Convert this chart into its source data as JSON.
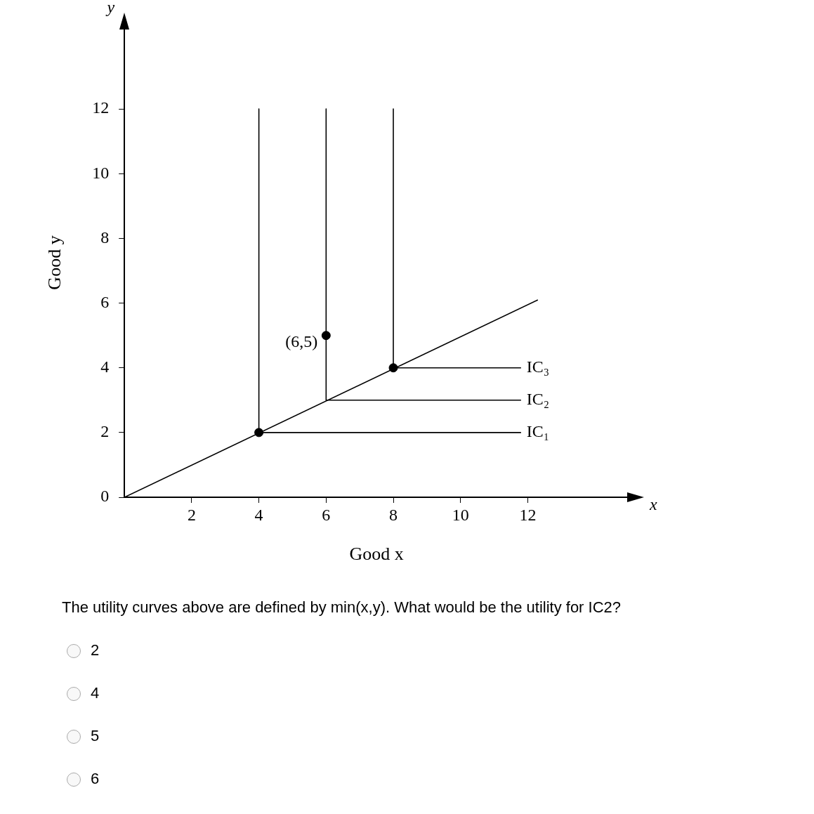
{
  "chart_data": {
    "type": "line",
    "xlabel": "Good x",
    "ylabel": "Good y",
    "xlim": [
      0,
      15
    ],
    "ylim": [
      0,
      14.5
    ],
    "xticks": [
      2,
      4,
      6,
      8,
      10,
      12
    ],
    "yticks": [
      0,
      2,
      4,
      6,
      8,
      10,
      12
    ],
    "grid": false,
    "legend": false,
    "series": [
      {
        "color": "#000000",
        "x": [
          0,
          12.3
        ],
        "values": [
          0,
          6.1
        ]
      },
      {
        "name": "IC₁",
        "color": "#000000",
        "x": [
          4,
          4,
          11.8
        ],
        "values": [
          12,
          2,
          2
        ]
      },
      {
        "name": "IC₂",
        "color": "#000000",
        "x": [
          6,
          6,
          11.8
        ],
        "values": [
          12,
          3,
          3
        ]
      },
      {
        "name": "IC₃",
        "color": "#000000",
        "x": [
          8,
          8,
          11.8
        ],
        "values": [
          12,
          4,
          4
        ]
      },
      {
        "type": "scatter",
        "marker": "circle",
        "color": "#000000",
        "x": [
          4,
          8,
          6
        ],
        "values": [
          2,
          4,
          5
        ]
      }
    ],
    "annotations": [
      {
        "text": "(6,5)",
        "x": 6,
        "y": 5
      },
      "x",
      "y",
      "The utility curves above are defined by min(x,y). What would be the utility for IC2?",
      "2",
      "4",
      "5",
      "6"
    ]
  }
}
